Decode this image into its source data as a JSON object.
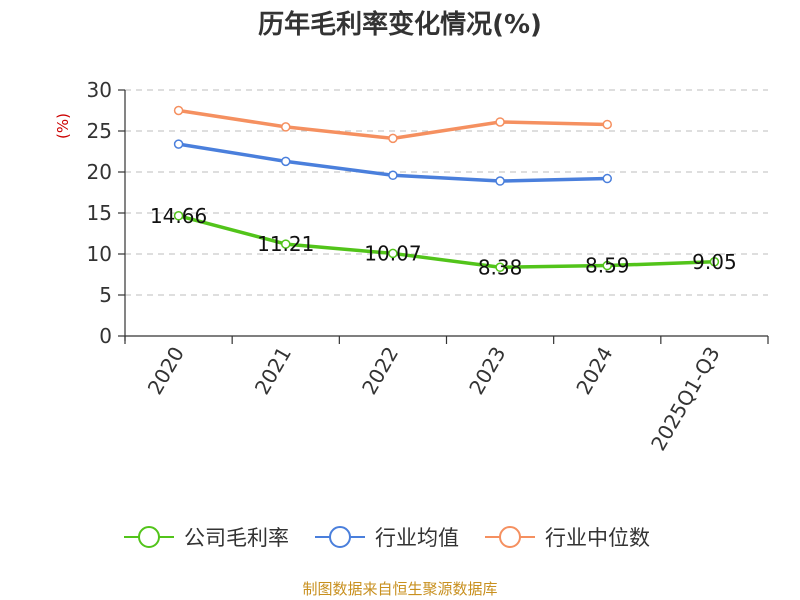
{
  "chart_data": {
    "type": "line",
    "title": "历年毛利率变化情况(%)",
    "ylabel": "(%)",
    "xlabel": "",
    "categories": [
      "2020",
      "2021",
      "2022",
      "2023",
      "2024",
      "2025Q1-Q3"
    ],
    "ylim": [
      0,
      30
    ],
    "yticks": [
      0,
      5,
      10,
      15,
      20,
      25,
      30
    ],
    "grid": true,
    "legend_position": "bottom",
    "series": [
      {
        "name": "公司毛利率",
        "color": "#52c41a",
        "values": [
          14.66,
          11.21,
          10.07,
          8.38,
          8.59,
          9.05
        ],
        "labels": [
          "14.66",
          "11.21",
          "10.07",
          "8.38",
          "8.59",
          "9.05"
        ]
      },
      {
        "name": "行业均值",
        "color": "#4a7fdc",
        "values": [
          23.4,
          21.3,
          19.6,
          18.9,
          19.2,
          null
        ]
      },
      {
        "name": "行业中位数",
        "color": "#f59060",
        "values": [
          27.5,
          25.5,
          24.1,
          26.1,
          25.8,
          null
        ]
      }
    ]
  },
  "source": "制图数据来自恒生聚源数据库"
}
